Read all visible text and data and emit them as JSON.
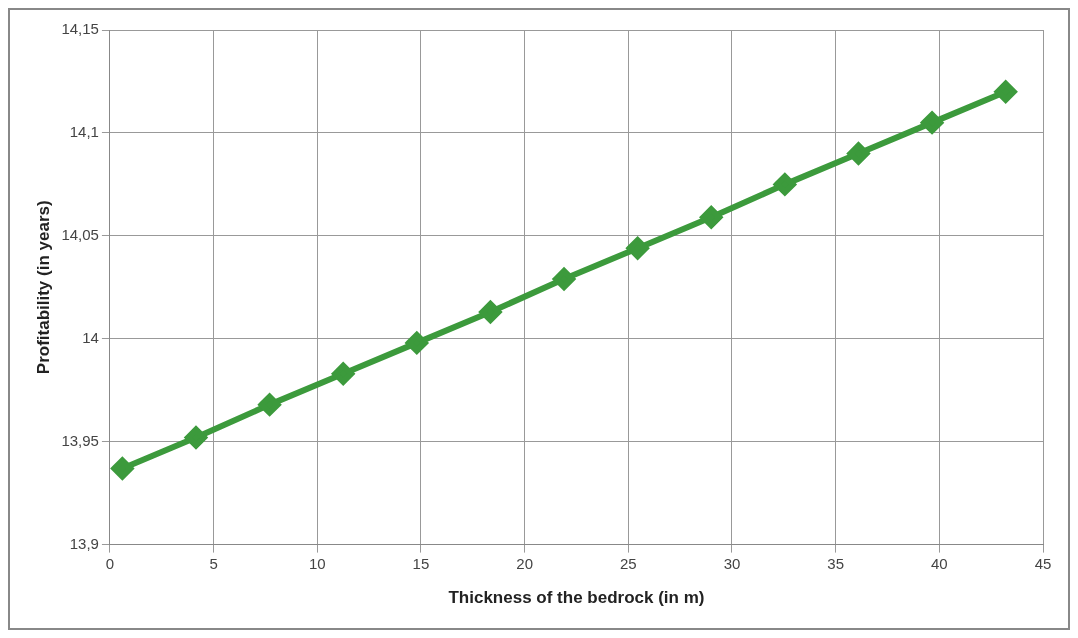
{
  "chart_data": {
    "type": "line",
    "xlabel": "Thickness of the bedrock (in m)",
    "ylabel": "Profitability (in years)",
    "xlim": [
      0,
      45
    ],
    "xticks": [
      0,
      5,
      10,
      15,
      20,
      25,
      30,
      35,
      40,
      45
    ],
    "ylim": [
      13.9,
      14.15
    ],
    "yticks": [
      {
        "value": 13.9,
        "label": "13,9"
      },
      {
        "value": 13.95,
        "label": "13,95"
      },
      {
        "value": 14,
        "label": "14"
      },
      {
        "value": 14.05,
        "label": "14,05"
      },
      {
        "value": 14.1,
        "label": "14,1"
      },
      {
        "value": 14.15,
        "label": "14,15"
      }
    ],
    "grid": true,
    "legend": false,
    "marker": "diamond",
    "line_style": "solid",
    "series": [
      {
        "color": "#3c9a3c",
        "x": [
          0.6,
          4.15,
          7.7,
          11.25,
          14.8,
          18.35,
          21.9,
          25.45,
          29,
          32.55,
          36.1,
          39.65,
          43.2
        ],
        "values": [
          13.937,
          13.952,
          13.968,
          13.983,
          13.998,
          14.013,
          14.029,
          14.044,
          14.059,
          14.075,
          14.09,
          14.105,
          14.12
        ]
      }
    ]
  }
}
